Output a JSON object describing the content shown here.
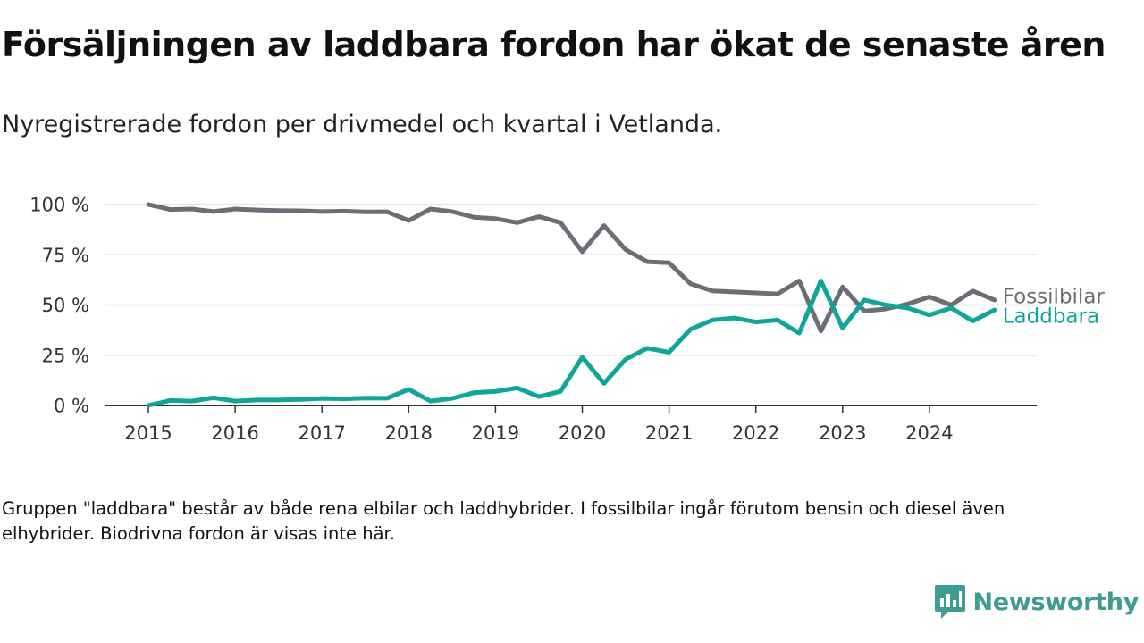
{
  "header": {
    "title": "Försäljningen av laddbara fordon har ökat de senaste åren",
    "subtitle": "Nyregistrerade fordon per drivmedel och kvartal i Vetlanda."
  },
  "chart_data": {
    "type": "line",
    "title": "Försäljningen av laddbara fordon har ökat de senaste åren",
    "subtitle": "Nyregistrerade fordon per drivmedel och kvartal i Vetlanda.",
    "xlabel": "",
    "ylabel": "",
    "ylim": [
      0,
      100
    ],
    "y_ticks": [
      {
        "value": 0,
        "label": "0 %"
      },
      {
        "value": 25,
        "label": "25 %"
      },
      {
        "value": 50,
        "label": "50 %"
      },
      {
        "value": 75,
        "label": "75 %"
      },
      {
        "value": 100,
        "label": "100 %"
      }
    ],
    "x_ticks": [
      {
        "value": 2015,
        "label": "2015"
      },
      {
        "value": 2016,
        "label": "2016"
      },
      {
        "value": 2017,
        "label": "2017"
      },
      {
        "value": 2018,
        "label": "2018"
      },
      {
        "value": 2019,
        "label": "2019"
      },
      {
        "value": 2020,
        "label": "2020"
      },
      {
        "value": 2021,
        "label": "2021"
      },
      {
        "value": 2022,
        "label": "2022"
      },
      {
        "value": 2023,
        "label": "2023"
      },
      {
        "value": 2024,
        "label": "2024"
      }
    ],
    "x": [
      2015.0,
      2015.25,
      2015.5,
      2015.75,
      2016.0,
      2016.25,
      2016.5,
      2016.75,
      2017.0,
      2017.25,
      2017.5,
      2017.75,
      2018.0,
      2018.25,
      2018.5,
      2018.75,
      2019.0,
      2019.25,
      2019.5,
      2019.75,
      2020.0,
      2020.25,
      2020.5,
      2020.75,
      2021.0,
      2021.25,
      2021.5,
      2021.75,
      2022.0,
      2022.25,
      2022.5,
      2022.75,
      2023.0,
      2023.25,
      2023.5,
      2023.75,
      2024.0,
      2024.25,
      2024.5,
      2024.75
    ],
    "grid": true,
    "series": [
      {
        "name": "Fossilbilar",
        "label": "Fossilbilar",
        "color": "#6e6d76",
        "values": [
          100,
          97.5,
          97.8,
          96.5,
          97.8,
          97.3,
          97,
          96.9,
          96.5,
          96.7,
          96.3,
          96.4,
          92,
          97.8,
          96.5,
          93.7,
          93,
          91,
          94,
          91,
          76.5,
          89.5,
          77.5,
          71.5,
          71,
          60.5,
          57,
          56.5,
          56,
          55.5,
          62,
          37,
          59,
          47,
          48,
          50.5,
          54,
          50,
          57,
          52.5
        ]
      },
      {
        "name": "Laddbara",
        "label": "Laddbara",
        "color": "#0fa59a",
        "values": [
          0,
          2.5,
          2.2,
          3.8,
          2.2,
          2.7,
          2.7,
          3,
          3.5,
          3.3,
          3.7,
          3.6,
          8,
          2.2,
          3.5,
          6.3,
          7,
          8.7,
          4.4,
          7,
          24,
          11,
          23,
          28.5,
          26.5,
          38,
          42.5,
          43.5,
          41.5,
          42.5,
          36,
          62,
          38.5,
          52.5,
          50,
          48.5,
          45,
          48.5,
          42,
          47.5
        ]
      }
    ]
  },
  "footer": {
    "note": "Gruppen \"laddbara\" består av både rena elbilar och laddhybrider. I fossilbilar ingår förutom bensin och diesel även elhybrider. Biodrivna fordon är visas inte här.",
    "brand": "Newsworthy",
    "brand_color": "#3f9c94"
  }
}
